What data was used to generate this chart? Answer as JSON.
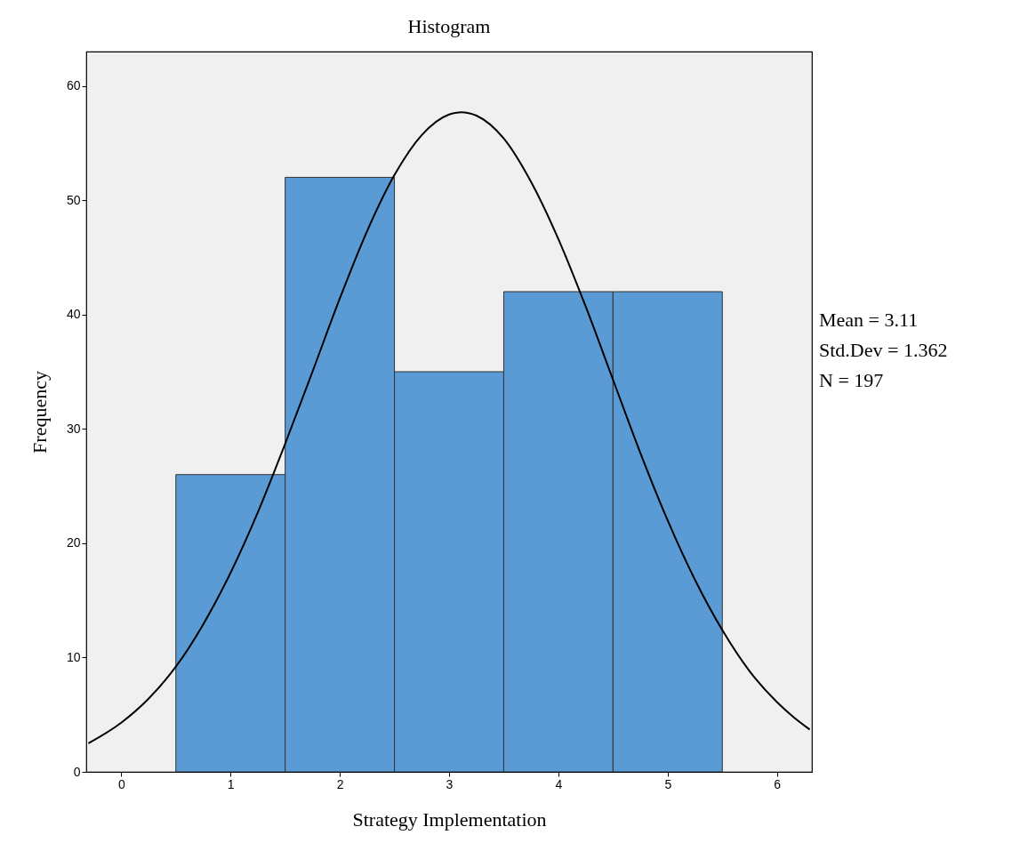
{
  "chart_data": {
    "type": "histogram",
    "title": "Histogram",
    "xlabel": "Strategy Implementation",
    "ylabel": "Frequency",
    "bins": [
      0.5,
      1.5,
      2.5,
      3.5,
      4.5,
      5.5
    ],
    "values": [
      26,
      52,
      35,
      42,
      42
    ],
    "color": "#5b9bd5",
    "series": [
      {
        "type": "line",
        "color": "#000000",
        "x": [
          -0.3,
          0,
          0.25,
          0.5,
          0.75,
          1,
          1.25,
          1.5,
          1.75,
          2,
          2.25,
          2.5,
          2.75,
          3,
          3.11,
          3.25,
          3.5,
          3.75,
          4,
          4.25,
          4.5,
          4.75,
          5,
          5.25,
          5.5,
          5.75,
          6,
          6.15,
          6.3
        ],
        "values": [
          2.5,
          4.3,
          6.4,
          9.2,
          12.9,
          17.4,
          22.7,
          28.7,
          35.0,
          41.4,
          47.3,
          52.2,
          55.7,
          57.5,
          57.7,
          57.4,
          55.4,
          51.6,
          46.6,
          40.7,
          34.3,
          27.9,
          22.0,
          16.8,
          12.4,
          8.8,
          6.1,
          4.8,
          3.7
        ]
      }
    ],
    "xlim": [
      -0.32,
      6.32
    ],
    "xticks": [
      0,
      1,
      2,
      3,
      4,
      5,
      6
    ],
    "ylim": [
      0,
      63
    ],
    "yticks": [
      0,
      10,
      20,
      30,
      40,
      50,
      60
    ],
    "grid": false,
    "annotations": [
      "Mean = 3.11",
      "Std.Dev = 1.362",
      "N = 197"
    ]
  }
}
